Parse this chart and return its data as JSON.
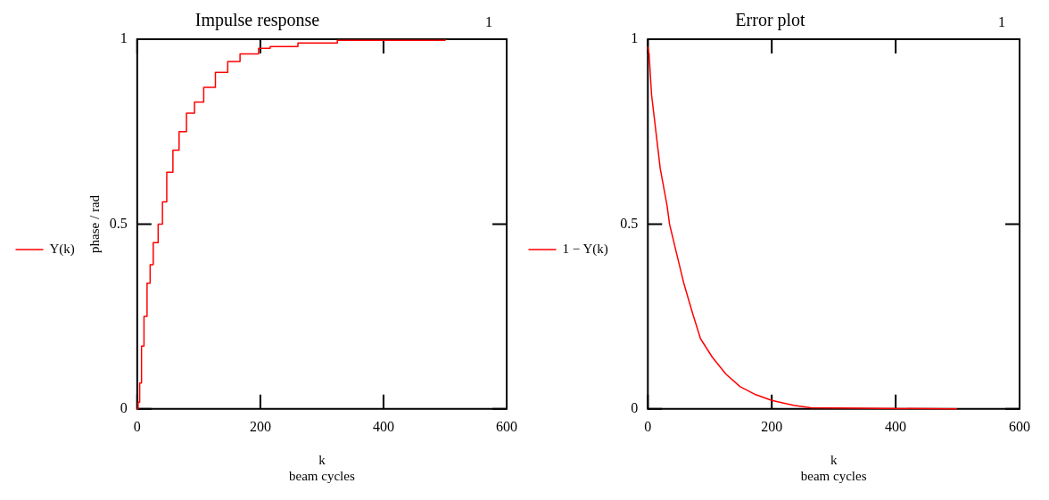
{
  "chart_data": [
    {
      "type": "step",
      "title": "Impulse response",
      "xlabel": "k\nbeam cycles",
      "ylabel": "phase / rad",
      "xlim": [
        0,
        600
      ],
      "xticks": [
        0,
        200,
        400,
        600
      ],
      "ylim": [
        0,
        1
      ],
      "yticks": [
        0,
        0.5,
        1
      ],
      "legend": "left",
      "annotations": [
        "1"
      ],
      "series": [
        {
          "name": "Y(k)",
          "color": "#ff0000",
          "x": [
            0,
            1.5,
            4,
            7,
            11,
            16,
            21,
            26,
            34,
            41,
            48,
            58,
            68,
            80,
            93,
            108,
            127,
            147,
            167,
            197,
            216,
            261,
            325,
            500
          ],
          "values": [
            0,
            0.018,
            0.07,
            0.17,
            0.25,
            0.34,
            0.39,
            0.45,
            0.5,
            0.56,
            0.64,
            0.7,
            0.75,
            0.8,
            0.83,
            0.87,
            0.91,
            0.94,
            0.96,
            0.975,
            0.98,
            0.99,
            0.997,
            1
          ]
        }
      ]
    },
    {
      "type": "line",
      "title": "Error plot",
      "xlabel": "k\nbeam cycles",
      "xlim": [
        0,
        600
      ],
      "xticks": [
        0,
        200,
        400,
        600
      ],
      "ylim": [
        0,
        1
      ],
      "yticks": [
        0,
        0.5,
        1
      ],
      "legend": "left",
      "annotations": [
        "1"
      ],
      "series": [
        {
          "name": "1 − Y(k)",
          "color": "#ff0000",
          "x": [
            0,
            2,
            6,
            13,
            20,
            31,
            35,
            45,
            58,
            72,
            85,
            104,
            126,
            149,
            172,
            200,
            235,
            263,
            499
          ],
          "values": [
            0.98,
            0.96,
            0.85,
            0.75,
            0.65,
            0.55,
            0.5,
            0.43,
            0.34,
            0.26,
            0.19,
            0.14,
            0.094,
            0.06,
            0.04,
            0.023,
            0.01,
            0.003,
            0
          ]
        }
      ]
    }
  ]
}
